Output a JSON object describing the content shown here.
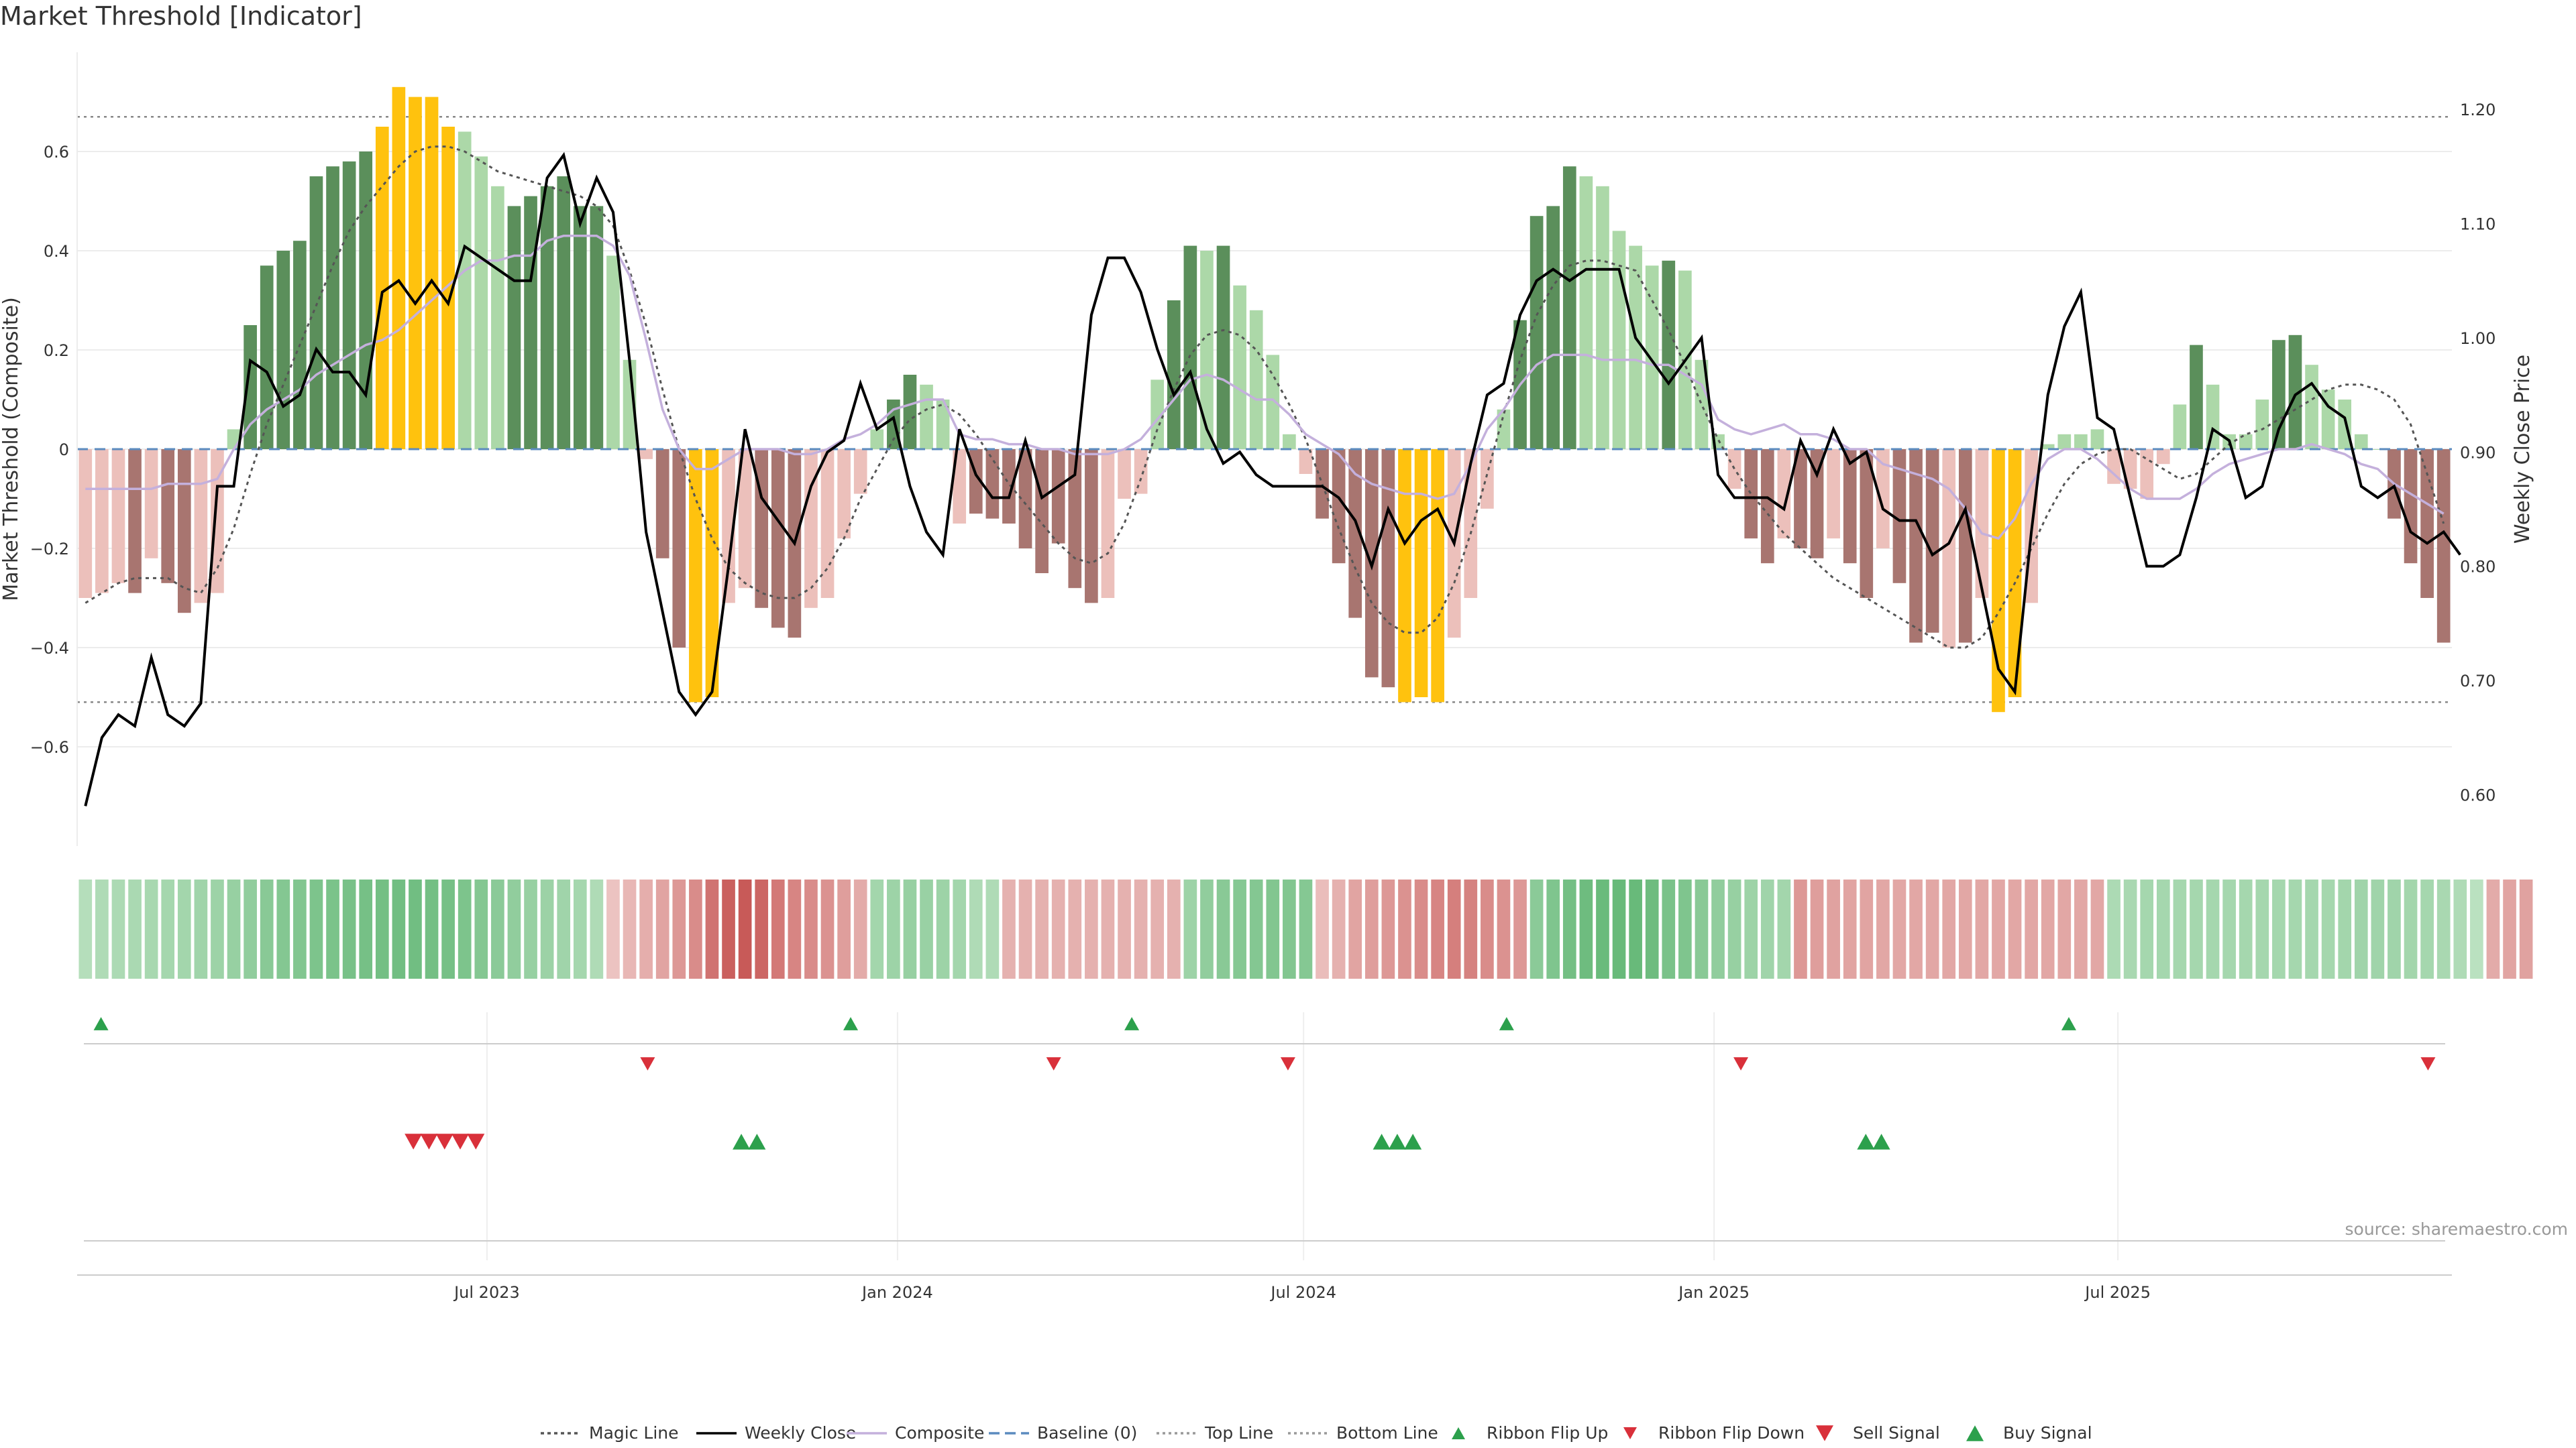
{
  "title": "Market Threshold [Indicator]",
  "source": "source: sharemaestro.com",
  "colors": {
    "strong_green": "#5b8f5b",
    "light_green": "#acd8a8",
    "strong_red": "#a87570",
    "light_red": "#ecc0bb",
    "yellow": "#ffc20e",
    "close": "#000000",
    "composite": "#c4b0dc",
    "magic": "#555555",
    "baseline": "#5b8bbf",
    "signal_green": "#2ca04c",
    "signal_red": "#d9303a"
  },
  "chart_data": {
    "type": "bar",
    "start_date": "2023-01-02",
    "date_range": [
      "2023-01-02",
      "2025-11-24"
    ],
    "x_ticks": [
      {
        "date": "2023-07-01",
        "label": "Jul 2023"
      },
      {
        "date": "2024-01-01",
        "label": "Jan 2024"
      },
      {
        "date": "2024-07-01",
        "label": "Jul 2024"
      },
      {
        "date": "2025-01-01",
        "label": "Jan 2025"
      },
      {
        "date": "2025-07-01",
        "label": "Jul 2025"
      }
    ],
    "y_left": {
      "label": "Market Threshold (Composite)",
      "range": [
        -0.8,
        0.8
      ],
      "ticks": [
        0.6,
        0.4,
        0.2,
        0,
        -0.2,
        -0.4,
        -0.6
      ],
      "tick_labels": [
        "0.6",
        "0.4",
        "0.2",
        "0",
        "−0.2",
        "−0.4",
        "−0.6"
      ]
    },
    "y_right": {
      "label": "Weekly Close Price",
      "range": [
        0.555,
        1.25
      ],
      "ticks": [
        1.2,
        1.1,
        1.0,
        0.9,
        0.8,
        0.7,
        0.6
      ],
      "tick_labels": [
        "1.20",
        "1.10",
        "1.00",
        "0.90",
        "0.80",
        "0.70",
        "0.60"
      ]
    },
    "top_line": 0.67,
    "bottom_line": -0.51,
    "bars": [
      -0.3,
      -0.29,
      -0.27,
      -0.29,
      -0.22,
      -0.27,
      -0.33,
      -0.31,
      -0.29,
      0.04,
      0.25,
      0.37,
      0.4,
      0.42,
      0.55,
      0.57,
      0.58,
      0.6,
      0.65,
      0.73,
      0.71,
      0.71,
      0.65,
      0.64,
      0.59,
      0.53,
      0.49,
      0.51,
      0.53,
      0.55,
      0.49,
      0.49,
      0.39,
      0.18,
      -0.02,
      -0.22,
      -0.4,
      -0.51,
      -0.5,
      -0.31,
      -0.28,
      -0.32,
      -0.36,
      -0.38,
      -0.32,
      -0.3,
      -0.18,
      -0.09,
      0.04,
      0.1,
      0.15,
      0.13,
      0.1,
      -0.15,
      -0.13,
      -0.14,
      -0.15,
      -0.2,
      -0.25,
      -0.19,
      -0.28,
      -0.31,
      -0.3,
      -0.1,
      -0.09,
      0.14,
      0.3,
      0.41,
      0.4,
      0.41,
      0.33,
      0.28,
      0.19,
      0.03,
      -0.05,
      -0.14,
      -0.23,
      -0.34,
      -0.46,
      -0.48,
      -0.51,
      -0.5,
      -0.51,
      -0.38,
      -0.3,
      -0.12,
      0.08,
      0.26,
      0.47,
      0.49,
      0.57,
      0.55,
      0.53,
      0.44,
      0.41,
      0.37,
      0.38,
      0.36,
      0.18,
      0.03,
      -0.08,
      -0.18,
      -0.23,
      -0.18,
      -0.2,
      -0.22,
      -0.18,
      -0.23,
      -0.3,
      -0.2,
      -0.27,
      -0.39,
      -0.37,
      -0.4,
      -0.39,
      -0.3,
      -0.53,
      -0.5,
      -0.31,
      0.01,
      0.03,
      0.03,
      0.04,
      -0.07,
      -0.08,
      -0.1,
      -0.03,
      0.09,
      0.21,
      0.13,
      0.03,
      0.03,
      0.1,
      0.22,
      0.23,
      0.17,
      0.12,
      0.1,
      0.03,
      0.0,
      -0.14,
      -0.23,
      -0.3,
      -0.39
    ],
    "bar_colors": [
      "light_red",
      "light_red",
      "light_red",
      "strong_red",
      "light_red",
      "strong_red",
      "strong_red",
      "light_red",
      "light_red",
      "light_green",
      "strong_green",
      "strong_green",
      "strong_green",
      "strong_green",
      "strong_green",
      "strong_green",
      "strong_green",
      "strong_green",
      "yellow",
      "yellow",
      "yellow",
      "yellow",
      "yellow",
      "light_green",
      "light_green",
      "light_green",
      "strong_green",
      "strong_green",
      "strong_green",
      "strong_green",
      "strong_green",
      "strong_green",
      "light_green",
      "light_green",
      "light_red",
      "strong_red",
      "strong_red",
      "yellow",
      "yellow",
      "light_red",
      "light_red",
      "strong_red",
      "strong_red",
      "strong_red",
      "light_red",
      "light_red",
      "light_red",
      "light_red",
      "light_green",
      "strong_green",
      "strong_green",
      "light_green",
      "light_green",
      "light_red",
      "strong_red",
      "strong_red",
      "strong_red",
      "strong_red",
      "strong_red",
      "strong_red",
      "strong_red",
      "strong_red",
      "light_red",
      "light_red",
      "light_red",
      "light_green",
      "strong_green",
      "strong_green",
      "light_green",
      "strong_green",
      "light_green",
      "light_green",
      "light_green",
      "light_green",
      "light_red",
      "strong_red",
      "strong_red",
      "strong_red",
      "strong_red",
      "strong_red",
      "yellow",
      "yellow",
      "yellow",
      "light_red",
      "light_red",
      "light_red",
      "light_green",
      "strong_green",
      "strong_green",
      "strong_green",
      "strong_green",
      "light_green",
      "light_green",
      "light_green",
      "light_green",
      "light_green",
      "strong_green",
      "light_green",
      "light_green",
      "light_green",
      "light_red",
      "strong_red",
      "strong_red",
      "light_red",
      "strong_red",
      "strong_red",
      "light_red",
      "strong_red",
      "strong_red",
      "light_red",
      "strong_red",
      "strong_red",
      "strong_red",
      "light_red",
      "strong_red",
      "light_red",
      "yellow",
      "yellow",
      "light_red",
      "light_green",
      "light_green",
      "light_green",
      "light_green",
      "light_red",
      "light_red",
      "light_red",
      "light_red",
      "light_green",
      "strong_green",
      "light_green",
      "light_green",
      "light_green",
      "light_green",
      "strong_green",
      "strong_green",
      "light_green",
      "light_green",
      "light_green",
      "light_green",
      "light_green",
      "strong_red",
      "strong_red",
      "strong_red",
      "strong_red"
    ],
    "weekly_close": [
      0.59,
      0.65,
      0.67,
      0.66,
      0.72,
      0.67,
      0.66,
      0.68,
      0.87,
      0.87,
      0.98,
      0.97,
      0.94,
      0.95,
      0.99,
      0.97,
      0.97,
      0.95,
      1.04,
      1.05,
      1.03,
      1.05,
      1.03,
      1.08,
      1.07,
      1.06,
      1.05,
      1.05,
      1.14,
      1.16,
      1.1,
      1.14,
      1.11,
      0.98,
      0.83,
      0.76,
      0.69,
      0.67,
      0.69,
      0.8,
      0.92,
      0.86,
      0.84,
      0.82,
      0.87,
      0.9,
      0.91,
      0.96,
      0.92,
      0.93,
      0.87,
      0.83,
      0.81,
      0.92,
      0.88,
      0.86,
      0.86,
      0.91,
      0.86,
      0.87,
      0.88,
      1.02,
      1.07,
      1.07,
      1.04,
      0.99,
      0.95,
      0.97,
      0.92,
      0.89,
      0.9,
      0.88,
      0.87,
      0.87,
      0.87,
      0.87,
      0.86,
      0.84,
      0.8,
      0.85,
      0.82,
      0.84,
      0.85,
      0.82,
      0.89,
      0.95,
      0.96,
      1.02,
      1.05,
      1.06,
      1.05,
      1.06,
      1.06,
      1.06,
      1.0,
      0.98,
      0.96,
      0.98,
      1.0,
      0.88,
      0.86,
      0.86,
      0.86,
      0.85,
      0.91,
      0.88,
      0.92,
      0.89,
      0.9,
      0.85,
      0.84,
      0.84,
      0.81,
      0.82,
      0.85,
      0.78,
      0.71,
      0.69,
      0.83,
      0.95,
      1.01,
      1.04,
      0.93,
      0.92,
      0.86,
      0.8,
      0.8,
      0.81,
      0.86,
      0.92,
      0.91,
      0.86,
      0.87,
      0.92,
      0.95,
      0.96,
      0.94,
      0.93,
      0.87,
      0.86,
      0.87,
      0.83,
      0.82,
      0.83,
      0.81
    ],
    "composite": [
      -0.08,
      -0.08,
      -0.08,
      -0.08,
      -0.08,
      -0.07,
      -0.07,
      -0.07,
      -0.06,
      0.0,
      0.05,
      0.08,
      0.1,
      0.12,
      0.15,
      0.17,
      0.19,
      0.21,
      0.22,
      0.24,
      0.27,
      0.3,
      0.33,
      0.36,
      0.38,
      0.38,
      0.39,
      0.39,
      0.42,
      0.43,
      0.43,
      0.43,
      0.41,
      0.35,
      0.22,
      0.08,
      0.0,
      -0.04,
      -0.04,
      -0.02,
      0.0,
      0.0,
      0.0,
      -0.01,
      -0.01,
      0.0,
      0.02,
      0.03,
      0.05,
      0.08,
      0.09,
      0.1,
      0.1,
      0.03,
      0.02,
      0.02,
      0.01,
      0.01,
      0.0,
      0.0,
      -0.01,
      -0.01,
      -0.01,
      0.0,
      0.02,
      0.06,
      0.1,
      0.14,
      0.15,
      0.14,
      0.12,
      0.1,
      0.1,
      0.07,
      0.03,
      0.01,
      -0.01,
      -0.05,
      -0.07,
      -0.08,
      -0.09,
      -0.09,
      -0.1,
      -0.09,
      -0.03,
      0.04,
      0.08,
      0.13,
      0.17,
      0.19,
      0.19,
      0.19,
      0.18,
      0.18,
      0.18,
      0.17,
      0.17,
      0.15,
      0.13,
      0.06,
      0.04,
      0.03,
      0.04,
      0.05,
      0.03,
      0.03,
      0.02,
      0.0,
      0.0,
      -0.03,
      -0.04,
      -0.05,
      -0.06,
      -0.08,
      -0.12,
      -0.17,
      -0.18,
      -0.14,
      -0.07,
      -0.02,
      0.0,
      0.0,
      -0.02,
      -0.05,
      -0.08,
      -0.1,
      -0.1,
      -0.1,
      -0.08,
      -0.05,
      -0.03,
      -0.02,
      -0.01,
      0.0,
      0.0,
      0.01,
      0.0,
      -0.01,
      -0.03,
      -0.04,
      -0.07,
      -0.09,
      -0.11,
      -0.13
    ],
    "magic_line": [
      -0.31,
      -0.29,
      -0.27,
      -0.26,
      -0.26,
      -0.26,
      -0.28,
      -0.29,
      -0.24,
      -0.16,
      -0.05,
      0.05,
      0.13,
      0.21,
      0.29,
      0.37,
      0.44,
      0.49,
      0.53,
      0.57,
      0.6,
      0.61,
      0.61,
      0.6,
      0.58,
      0.56,
      0.55,
      0.54,
      0.53,
      0.52,
      0.51,
      0.49,
      0.45,
      0.36,
      0.25,
      0.12,
      0.0,
      -0.1,
      -0.18,
      -0.24,
      -0.27,
      -0.29,
      -0.3,
      -0.3,
      -0.28,
      -0.24,
      -0.18,
      -0.1,
      -0.04,
      0.02,
      0.06,
      0.08,
      0.09,
      0.07,
      0.03,
      -0.02,
      -0.07,
      -0.11,
      -0.15,
      -0.19,
      -0.22,
      -0.23,
      -0.21,
      -0.15,
      -0.06,
      0.04,
      0.12,
      0.19,
      0.23,
      0.24,
      0.23,
      0.2,
      0.15,
      0.09,
      0.02,
      -0.07,
      -0.16,
      -0.24,
      -0.31,
      -0.35,
      -0.37,
      -0.37,
      -0.34,
      -0.27,
      -0.17,
      -0.05,
      0.07,
      0.18,
      0.27,
      0.33,
      0.37,
      0.38,
      0.38,
      0.37,
      0.36,
      0.3,
      0.24,
      0.17,
      0.09,
      0.02,
      -0.04,
      -0.09,
      -0.13,
      -0.17,
      -0.2,
      -0.23,
      -0.26,
      -0.28,
      -0.3,
      -0.32,
      -0.34,
      -0.36,
      -0.38,
      -0.4,
      -0.4,
      -0.38,
      -0.33,
      -0.27,
      -0.2,
      -0.13,
      -0.07,
      -0.03,
      -0.01,
      0.0,
      0.0,
      -0.02,
      -0.04,
      -0.06,
      -0.05,
      -0.02,
      0.01,
      0.03,
      0.04,
      0.06,
      0.08,
      0.1,
      0.12,
      0.13,
      0.13,
      0.12,
      0.1,
      0.05,
      -0.05,
      -0.15
    ],
    "ribbon": [
      0.25,
      0.3,
      0.32,
      0.34,
      0.36,
      0.38,
      0.4,
      0.42,
      0.45,
      0.5,
      0.55,
      0.62,
      0.66,
      0.68,
      0.72,
      0.74,
      0.76,
      0.78,
      0.8,
      0.82,
      0.82,
      0.8,
      0.78,
      0.72,
      0.66,
      0.6,
      0.55,
      0.5,
      0.46,
      0.42,
      0.38,
      0.3,
      -0.15,
      -0.25,
      -0.32,
      -0.4,
      -0.5,
      -0.6,
      -0.8,
      -0.95,
      -1.0,
      -0.9,
      -0.75,
      -0.65,
      -0.6,
      -0.55,
      -0.45,
      -0.35,
      0.4,
      0.45,
      0.5,
      0.48,
      0.45,
      0.4,
      0.3,
      0.3,
      -0.3,
      -0.3,
      -0.3,
      -0.3,
      -0.3,
      -0.3,
      -0.3,
      -0.3,
      -0.3,
      -0.3,
      -0.3,
      0.45,
      0.55,
      0.62,
      0.65,
      0.66,
      0.68,
      0.68,
      0.65,
      -0.2,
      -0.3,
      -0.4,
      -0.45,
      -0.5,
      -0.55,
      -0.6,
      -0.65,
      -0.7,
      -0.68,
      -0.6,
      -0.55,
      -0.5,
      0.6,
      0.7,
      0.8,
      0.85,
      0.88,
      0.9,
      0.9,
      0.85,
      0.75,
      0.7,
      0.62,
      0.55,
      0.5,
      0.45,
      0.42,
      0.4,
      -0.5,
      -0.45,
      -0.42,
      -0.4,
      -0.4,
      -0.38,
      -0.38,
      -0.38,
      -0.38,
      -0.38,
      -0.38,
      -0.38,
      -0.38,
      -0.38,
      -0.38,
      -0.38,
      -0.38,
      -0.38,
      -0.38,
      0.32,
      0.35,
      0.38,
      0.38,
      0.38,
      0.38,
      0.38,
      0.38,
      0.38,
      0.38,
      0.38,
      0.38,
      0.38,
      0.38,
      0.4,
      0.42,
      0.42,
      0.42,
      0.4,
      0.38,
      0.35,
      0.3,
      0.2,
      -0.35,
      -0.4,
      -0.42
    ],
    "ribbon_flip_up": [
      "2023-01-09",
      "2023-12-11",
      "2024-04-15",
      "2024-09-30",
      "2025-06-09"
    ],
    "ribbon_flip_down": [
      "2023-09-11",
      "2024-03-11",
      "2024-06-24",
      "2025-01-13",
      "2025-11-17"
    ],
    "sell_signal": [
      "2023-05-29",
      "2023-06-05",
      "2023-06-12",
      "2023-06-19",
      "2023-06-26"
    ],
    "buy_signal": [
      "2023-10-23",
      "2023-10-30",
      "2024-08-05",
      "2024-08-12",
      "2024-08-19",
      "2025-03-10",
      "2025-03-17"
    ],
    "legend": [
      {
        "label": "Magic Line",
        "kind": "line",
        "style": "dotted",
        "color": "magic"
      },
      {
        "label": "Weekly Close",
        "kind": "line",
        "style": "solid",
        "color": "close"
      },
      {
        "label": "Composite",
        "kind": "line",
        "style": "solid",
        "color": "composite"
      },
      {
        "label": "Baseline (0)",
        "kind": "line",
        "style": "dashed",
        "color": "baseline"
      },
      {
        "label": "Top Line",
        "kind": "line",
        "style": "dotted-light",
        "color": "magic"
      },
      {
        "label": "Bottom Line",
        "kind": "line",
        "style": "dotted-light",
        "color": "magic"
      },
      {
        "label": "Ribbon Flip Up",
        "kind": "marker-up",
        "color": "signal_green"
      },
      {
        "label": "Ribbon Flip Down",
        "kind": "marker-down",
        "color": "signal_red"
      },
      {
        "label": "Sell Signal",
        "kind": "marker-down-big",
        "color": "signal_red"
      },
      {
        "label": "Buy Signal",
        "kind": "marker-up-big",
        "color": "signal_green"
      }
    ],
    "legend_placement": "bottom-center"
  }
}
